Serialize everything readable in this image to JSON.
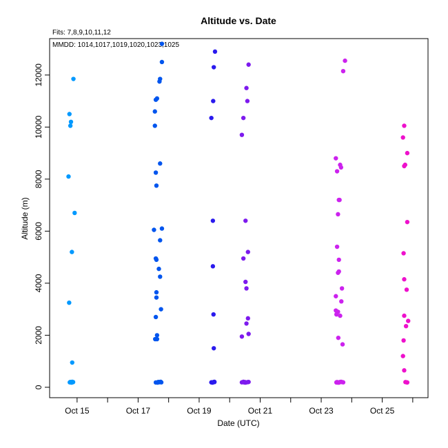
{
  "chart_data": {
    "type": "scatter",
    "title": "Altitude  vs. Date",
    "fits_label": "Fits: 7,8,9,10,11,12",
    "mmdd_label": "MMDD: 1014,1017,1019,1020,1023,1025",
    "xlabel": "Date (UTC)",
    "ylabel": "Altitude (m)",
    "xlim": [
      14.1,
      26.5
    ],
    "ylim": [
      -400,
      13400
    ],
    "x_ticks": [
      {
        "value": 15,
        "label": "Oct 15"
      },
      {
        "value": 16,
        "label": ""
      },
      {
        "value": 17,
        "label": "Oct 17"
      },
      {
        "value": 18,
        "label": ""
      },
      {
        "value": 19,
        "label": "Oct 19"
      },
      {
        "value": 20,
        "label": ""
      },
      {
        "value": 21,
        "label": "Oct 21"
      },
      {
        "value": 22,
        "label": ""
      },
      {
        "value": 23,
        "label": "Oct 23"
      },
      {
        "value": 24,
        "label": ""
      },
      {
        "value": 25,
        "label": "Oct 25"
      },
      {
        "value": 26,
        "label": ""
      }
    ],
    "y_ticks": [
      0,
      2000,
      4000,
      6000,
      8000,
      10000,
      12000
    ],
    "grid": false,
    "series": [
      {
        "name": "1014",
        "color": "#0099ff",
        "x": [
          14.88,
          14.75,
          14.8,
          14.78,
          14.72,
          14.92,
          14.83,
          14.74,
          14.84,
          14.87,
          14.76,
          14.8,
          14.82,
          14.86,
          14.78,
          14.84
        ],
        "y": [
          11850,
          10500,
          10200,
          10050,
          8100,
          6700,
          5200,
          3250,
          950,
          200,
          190,
          185,
          180,
          195,
          205,
          210
        ]
      },
      {
        "name": "1017",
        "color": "#0055ee",
        "x": [
          17.78,
          17.78,
          17.72,
          17.7,
          17.62,
          17.58,
          17.55,
          17.55,
          17.72,
          17.58,
          17.6,
          17.78,
          17.52,
          17.72,
          17.58,
          17.6,
          17.68,
          17.72,
          17.6,
          17.6,
          17.75,
          17.58,
          17.62,
          17.56,
          17.62,
          17.7,
          17.76,
          17.58,
          17.64,
          17.7,
          17.66,
          17.74
        ],
        "y": [
          13200,
          12500,
          11850,
          11750,
          11100,
          11050,
          10600,
          10050,
          8600,
          8250,
          7750,
          6100,
          6050,
          5650,
          4950,
          4900,
          4550,
          4250,
          3650,
          3450,
          3000,
          2700,
          2000,
          1850,
          1850,
          200,
          190,
          185,
          180,
          195,
          205,
          210
        ]
      },
      {
        "name": "1019",
        "color": "#2a1aee",
        "x": [
          19.52,
          19.48,
          19.46,
          19.4,
          19.45,
          19.45,
          19.47,
          19.48,
          19.5,
          19.4,
          19.42,
          19.44,
          19.46,
          19.48,
          19.5
        ],
        "y": [
          12900,
          12300,
          11000,
          10350,
          6400,
          4650,
          2800,
          1500,
          200,
          190,
          185,
          180,
          195,
          205,
          210
        ]
      },
      {
        "name": "1020",
        "color": "#7d1aee",
        "x": [
          20.62,
          20.55,
          20.58,
          20.45,
          20.4,
          20.52,
          20.6,
          20.45,
          20.52,
          20.55,
          20.6,
          20.55,
          20.62,
          20.4,
          20.6,
          20.4,
          20.48,
          20.52,
          20.58,
          20.62,
          20.45,
          20.5
        ],
        "y": [
          12400,
          11500,
          11000,
          10350,
          9700,
          6400,
          5200,
          4950,
          4050,
          3800,
          2650,
          2450,
          2050,
          1950,
          200,
          190,
          185,
          180,
          195,
          205,
          210,
          200
        ]
      },
      {
        "name": "1023",
        "color": "#cc22ee",
        "x": [
          23.78,
          23.72,
          23.48,
          23.62,
          23.65,
          23.52,
          23.6,
          23.58,
          23.55,
          23.52,
          23.58,
          23.58,
          23.55,
          23.68,
          23.48,
          23.66,
          23.55,
          23.48,
          23.5,
          23.62,
          23.56,
          23.7,
          23.52,
          23.5,
          23.52,
          23.55,
          23.6,
          23.62,
          23.65,
          23.68,
          23.72,
          23.5,
          23.58
        ],
        "y": [
          12550,
          12150,
          8800,
          8550,
          8450,
          8300,
          7200,
          7200,
          6650,
          5400,
          4900,
          4450,
          4400,
          3800,
          3500,
          3300,
          2900,
          2950,
          2800,
          2750,
          1900,
          1650,
          200,
          190,
          185,
          180,
          195,
          205,
          210,
          200,
          190,
          185,
          180
        ]
      },
      {
        "name": "1025",
        "color": "#ee11cc",
        "x": [
          25.72,
          25.68,
          25.82,
          25.75,
          25.72,
          25.82,
          25.7,
          25.72,
          25.8,
          25.72,
          25.85,
          25.78,
          25.7,
          25.68,
          25.72,
          25.76,
          25.8,
          25.82
        ],
        "y": [
          10050,
          9600,
          9000,
          8550,
          8500,
          6350,
          5150,
          4150,
          3750,
          2750,
          2550,
          2350,
          1800,
          1200,
          650,
          200,
          190,
          185
        ]
      }
    ]
  }
}
